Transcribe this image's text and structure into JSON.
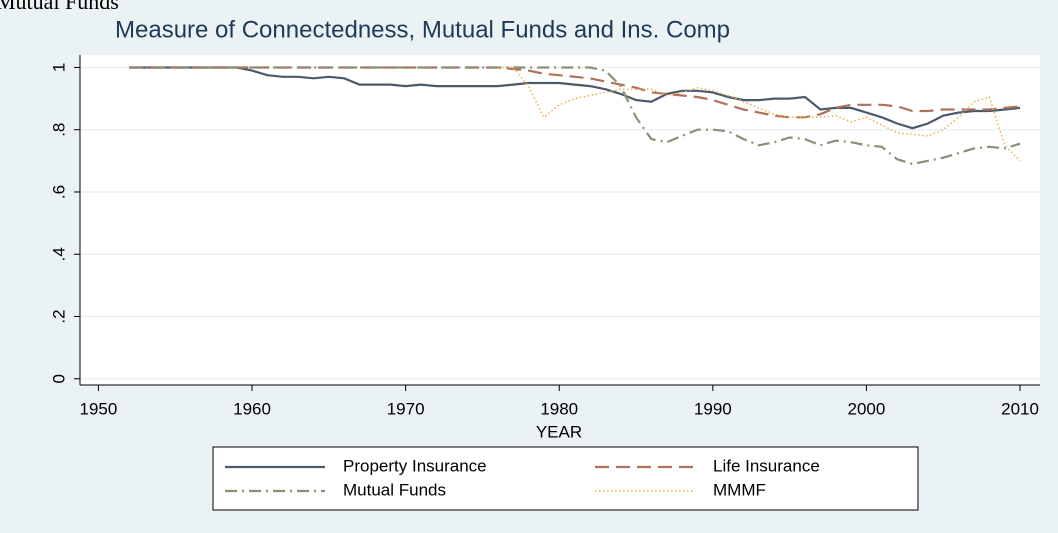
{
  "chart_data": {
    "type": "line",
    "note": "Mutual Funds",
    "title": "Measure of Connectedness, Mutual Funds and Ins. Comp",
    "x_label": "YEAR",
    "x": [
      1952,
      1953,
      1954,
      1955,
      1956,
      1957,
      1958,
      1959,
      1960,
      1961,
      1962,
      1963,
      1964,
      1965,
      1966,
      1967,
      1968,
      1969,
      1970,
      1971,
      1972,
      1973,
      1974,
      1975,
      1976,
      1977,
      1978,
      1979,
      1980,
      1981,
      1982,
      1983,
      1984,
      1985,
      1986,
      1987,
      1988,
      1989,
      1990,
      1991,
      1992,
      1993,
      1994,
      1995,
      1996,
      1997,
      1998,
      1999,
      2000,
      2001,
      2002,
      2003,
      2004,
      2005,
      2006,
      2007,
      2008,
      2009,
      2010
    ],
    "series": [
      {
        "name": "Property Insurance",
        "color": "#4a5a6c",
        "dash": "solid",
        "values": [
          1,
          1,
          1,
          1,
          1,
          1,
          1,
          1,
          0.99,
          0.975,
          0.97,
          0.97,
          0.965,
          0.97,
          0.965,
          0.945,
          0.945,
          0.945,
          0.94,
          0.945,
          0.94,
          0.94,
          0.94,
          0.94,
          0.94,
          0.945,
          0.95,
          0.95,
          0.95,
          0.945,
          0.94,
          0.93,
          0.915,
          0.895,
          0.89,
          0.915,
          0.925,
          0.925,
          0.92,
          0.905,
          0.895,
          0.895,
          0.9,
          0.9,
          0.905,
          0.865,
          0.87,
          0.87,
          0.855,
          0.84,
          0.82,
          0.805,
          0.82,
          0.845,
          0.855,
          0.86,
          0.86,
          0.865,
          0.87
        ]
      },
      {
        "name": "Life Insurance",
        "color": "#b0705c",
        "dash": "dash",
        "values": [
          1,
          1,
          1,
          1,
          1,
          1,
          1,
          1,
          1,
          1,
          1,
          1,
          1,
          1,
          1,
          1,
          1,
          1,
          1,
          1,
          1,
          1,
          1,
          1,
          1,
          0.995,
          0.99,
          0.98,
          0.975,
          0.97,
          0.965,
          0.955,
          0.945,
          0.935,
          0.92,
          0.915,
          0.91,
          0.905,
          0.895,
          0.88,
          0.865,
          0.855,
          0.845,
          0.84,
          0.84,
          0.85,
          0.87,
          0.88,
          0.88,
          0.88,
          0.875,
          0.86,
          0.86,
          0.865,
          0.865,
          0.865,
          0.865,
          0.87,
          0.875
        ]
      },
      {
        "name": "Mutual Funds",
        "color": "#8c8f74",
        "dash": "dashdot",
        "values": [
          1,
          1,
          1,
          1,
          1,
          1,
          1,
          1,
          1,
          1,
          1,
          1,
          1,
          1,
          1,
          1,
          1,
          1,
          1,
          1,
          1,
          1,
          1,
          1,
          1,
          1,
          1,
          1,
          1,
          1,
          1,
          0.99,
          0.94,
          0.84,
          0.77,
          0.76,
          0.78,
          0.8,
          0.8,
          0.795,
          0.77,
          0.75,
          0.76,
          0.775,
          0.77,
          0.75,
          0.765,
          0.76,
          0.75,
          0.745,
          0.705,
          0.69,
          0.7,
          0.71,
          0.725,
          0.74,
          0.745,
          0.74,
          0.755
        ]
      },
      {
        "name": "MMMF",
        "color": "#e8b048",
        "dash": "dot",
        "values": [
          null,
          null,
          null,
          null,
          null,
          null,
          null,
          null,
          null,
          null,
          null,
          null,
          null,
          null,
          null,
          null,
          null,
          null,
          null,
          null,
          null,
          null,
          null,
          null,
          1,
          1,
          0.94,
          0.84,
          0.88,
          0.9,
          0.91,
          0.92,
          0.93,
          0.93,
          0.93,
          0.91,
          0.92,
          0.935,
          0.925,
          0.91,
          0.89,
          0.87,
          0.85,
          0.84,
          0.84,
          0.84,
          0.845,
          0.825,
          0.84,
          0.815,
          0.79,
          0.785,
          0.78,
          0.8,
          0.84,
          0.89,
          0.905,
          0.75,
          0.7
        ]
      }
    ],
    "xlim": [
      1948.8,
      2011.3
    ],
    "xticks": [
      1950,
      1960,
      1970,
      1980,
      1990,
      2000,
      2010
    ],
    "ylim": [
      -0.02,
      1.04
    ],
    "yticks": [
      0,
      {
        "value": 0.2,
        "label": ".2"
      },
      {
        "value": 0.4,
        "label": ".4"
      },
      {
        "value": 0.6,
        "label": ".6"
      },
      {
        "value": 0.8,
        "label": ".8"
      },
      1
    ],
    "grid": true,
    "legend": "bottom"
  }
}
